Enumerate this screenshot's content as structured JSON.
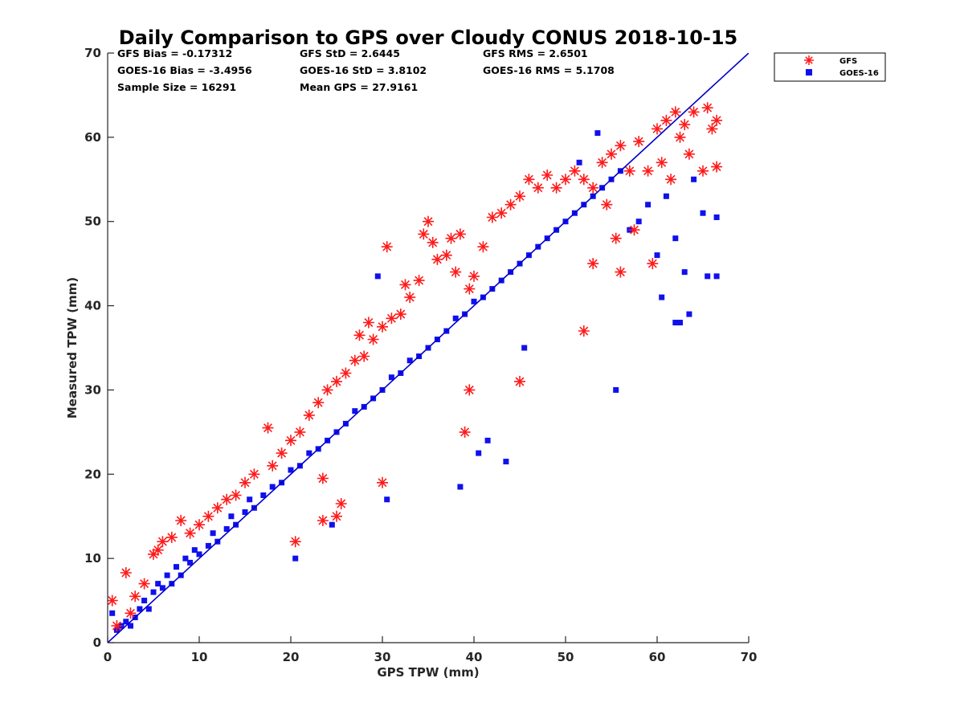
{
  "colors": {
    "gfs": "#ff1a1a",
    "goes": "#1010ee",
    "line": "#0000cc",
    "axis": "#262626"
  },
  "stats": {
    "gfs_bias": "GFS Bias = -0.17312",
    "gfs_std": "GFS StD = 2.6445",
    "gfs_rms": "GFS RMS = 2.6501",
    "goes_bias": "GOES-16 Bias = -3.4956",
    "goes_std": "GOES-16 StD = 3.8102",
    "goes_rms": "GOES-16 RMS = 5.1708",
    "sample_size": "Sample Size = 16291",
    "mean_gps": "Mean GPS = 27.9161"
  },
  "chart_data": {
    "type": "scatter",
    "title": "Daily Comparison to GPS over Cloudy CONUS 2018-10-15",
    "xlabel": "GPS TPW (mm)",
    "ylabel": "Measured TPW (mm)",
    "xlim": [
      0,
      70
    ],
    "ylim": [
      0,
      70
    ],
    "xticks": [
      0,
      10,
      20,
      30,
      40,
      50,
      60,
      70
    ],
    "yticks": [
      0,
      10,
      20,
      30,
      40,
      50,
      60,
      70
    ],
    "grid": false,
    "legend_position": "outside-top-right",
    "reference_line": {
      "x": [
        0,
        70
      ],
      "y": [
        0,
        70
      ]
    },
    "series": [
      {
        "name": "GFS",
        "marker": "asterisk",
        "points": [
          [
            0.5,
            5
          ],
          [
            1,
            2
          ],
          [
            2,
            8.3
          ],
          [
            2.5,
            3.5
          ],
          [
            3,
            5.5
          ],
          [
            4,
            7
          ],
          [
            5,
            10.5
          ],
          [
            5.5,
            11
          ],
          [
            6,
            12
          ],
          [
            7,
            12.5
          ],
          [
            8,
            14.5
          ],
          [
            9,
            13
          ],
          [
            10,
            14
          ],
          [
            11,
            15
          ],
          [
            12,
            16
          ],
          [
            13,
            17
          ],
          [
            14,
            17.5
          ],
          [
            15,
            19
          ],
          [
            16,
            20
          ],
          [
            17.5,
            25.5
          ],
          [
            18,
            21
          ],
          [
            19,
            22.5
          ],
          [
            20,
            24
          ],
          [
            21,
            25
          ],
          [
            22,
            27
          ],
          [
            23,
            28.5
          ],
          [
            23.5,
            14.5
          ],
          [
            24,
            30
          ],
          [
            25,
            31
          ],
          [
            25.5,
            16.5
          ],
          [
            26,
            32
          ],
          [
            27,
            33.5
          ],
          [
            27.5,
            36.5
          ],
          [
            28,
            34
          ],
          [
            28.5,
            38
          ],
          [
            29,
            36
          ],
          [
            30,
            37.5
          ],
          [
            30.5,
            47
          ],
          [
            31,
            38.5
          ],
          [
            32,
            39
          ],
          [
            32.5,
            42.5
          ],
          [
            33,
            41
          ],
          [
            34,
            43
          ],
          [
            34.5,
            48.5
          ],
          [
            35,
            50
          ],
          [
            35.5,
            47.5
          ],
          [
            36,
            45.5
          ],
          [
            37,
            46
          ],
          [
            37.5,
            48
          ],
          [
            38,
            44
          ],
          [
            38.5,
            48.5
          ],
          [
            39,
            25
          ],
          [
            39.5,
            42
          ],
          [
            40,
            43.5
          ],
          [
            41,
            47
          ],
          [
            42,
            50.5
          ],
          [
            43,
            51
          ],
          [
            44,
            52
          ],
          [
            45,
            53
          ],
          [
            46,
            55
          ],
          [
            47,
            54
          ],
          [
            48,
            55.5
          ],
          [
            49,
            54
          ],
          [
            50,
            55
          ],
          [
            51,
            56
          ],
          [
            52,
            55
          ],
          [
            53,
            54
          ],
          [
            53,
            45
          ],
          [
            54,
            57
          ],
          [
            54.5,
            52
          ],
          [
            55,
            58
          ],
          [
            55.5,
            48
          ],
          [
            56,
            59
          ],
          [
            56,
            44
          ],
          [
            57,
            56
          ],
          [
            57.5,
            49
          ],
          [
            58,
            59.5
          ],
          [
            59,
            56
          ],
          [
            59.5,
            45
          ],
          [
            60,
            61
          ],
          [
            60.5,
            57
          ],
          [
            61,
            62
          ],
          [
            61.5,
            55
          ],
          [
            62,
            63
          ],
          [
            62.5,
            60
          ],
          [
            63,
            61.5
          ],
          [
            63.5,
            58
          ],
          [
            64,
            63
          ],
          [
            65,
            56
          ],
          [
            65.5,
            63.5
          ],
          [
            66,
            61
          ],
          [
            66.5,
            62
          ],
          [
            66.5,
            56.5
          ],
          [
            20.5,
            12
          ],
          [
            25,
            15
          ],
          [
            23.5,
            19.5
          ],
          [
            30,
            19
          ],
          [
            39.5,
            30
          ],
          [
            45,
            31
          ],
          [
            52,
            37
          ]
        ]
      },
      {
        "name": "GOES-16",
        "marker": "square",
        "points": [
          [
            0.5,
            3.5
          ],
          [
            1,
            1.5
          ],
          [
            1.5,
            2
          ],
          [
            2,
            2.5
          ],
          [
            2.5,
            2
          ],
          [
            3,
            3
          ],
          [
            3.5,
            4
          ],
          [
            4,
            5
          ],
          [
            4.5,
            4
          ],
          [
            5,
            6
          ],
          [
            5.5,
            7
          ],
          [
            6,
            6.5
          ],
          [
            6.5,
            8
          ],
          [
            7,
            7
          ],
          [
            7.5,
            9
          ],
          [
            8,
            8
          ],
          [
            8.5,
            10
          ],
          [
            9,
            9.5
          ],
          [
            9.5,
            11
          ],
          [
            10,
            10.5
          ],
          [
            11,
            11.5
          ],
          [
            11.5,
            13
          ],
          [
            12,
            12
          ],
          [
            13,
            13.5
          ],
          [
            13.5,
            15
          ],
          [
            14,
            14
          ],
          [
            15,
            15.5
          ],
          [
            15.5,
            17
          ],
          [
            16,
            16
          ],
          [
            17,
            17.5
          ],
          [
            18,
            18.5
          ],
          [
            19,
            19
          ],
          [
            20,
            20.5
          ],
          [
            20.5,
            10
          ],
          [
            21,
            21
          ],
          [
            22,
            22.5
          ],
          [
            23,
            23
          ],
          [
            24,
            24
          ],
          [
            24.5,
            14
          ],
          [
            25,
            25
          ],
          [
            26,
            26
          ],
          [
            27,
            27.5
          ],
          [
            28,
            28
          ],
          [
            29,
            29
          ],
          [
            29.5,
            43.5
          ],
          [
            30,
            30
          ],
          [
            30.5,
            17
          ],
          [
            31,
            31.5
          ],
          [
            32,
            32
          ],
          [
            33,
            33.5
          ],
          [
            34,
            34
          ],
          [
            35,
            35
          ],
          [
            36,
            36
          ],
          [
            37,
            37
          ],
          [
            38,
            38.5
          ],
          [
            38.5,
            18.5
          ],
          [
            39,
            39
          ],
          [
            40,
            40.5
          ],
          [
            40.5,
            22.5
          ],
          [
            41,
            41
          ],
          [
            41.5,
            24
          ],
          [
            42,
            42
          ],
          [
            43,
            43
          ],
          [
            43.5,
            21.5
          ],
          [
            44,
            44
          ],
          [
            45,
            45
          ],
          [
            45.5,
            35
          ],
          [
            46,
            46
          ],
          [
            47,
            47
          ],
          [
            48,
            48
          ],
          [
            49,
            49
          ],
          [
            50,
            50
          ],
          [
            51,
            51
          ],
          [
            51.5,
            57
          ],
          [
            52,
            52
          ],
          [
            53,
            53
          ],
          [
            53.5,
            60.5
          ],
          [
            54,
            54
          ],
          [
            55,
            55
          ],
          [
            55.5,
            30
          ],
          [
            56,
            56
          ],
          [
            57,
            49
          ],
          [
            58,
            50
          ],
          [
            59,
            52
          ],
          [
            60,
            46
          ],
          [
            60.5,
            41
          ],
          [
            61,
            53
          ],
          [
            62,
            48
          ],
          [
            62.5,
            38
          ],
          [
            63,
            44
          ],
          [
            63.5,
            39
          ],
          [
            64,
            55
          ],
          [
            65,
            51
          ],
          [
            65.5,
            43.5
          ],
          [
            66.5,
            50.5
          ],
          [
            66.5,
            43.5
          ],
          [
            62,
            38
          ]
        ]
      }
    ]
  }
}
